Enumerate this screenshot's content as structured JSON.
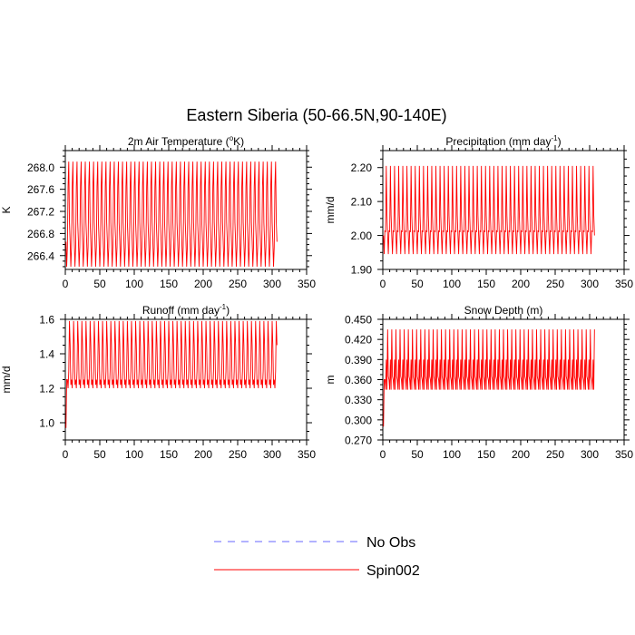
{
  "figure": {
    "title": "Eastern Siberia (50-66.5N,90-140E)"
  },
  "legend": {
    "entries": [
      {
        "label": "No Obs",
        "color": "#6666ff",
        "style": "dashed"
      },
      {
        "label": "Spin002",
        "color": "#ff0000",
        "style": "solid"
      }
    ]
  },
  "chart_data": [
    {
      "type": "line",
      "title": "2m Air Temperature (°K)",
      "title_main": "2m Air Temperature (",
      "title_sup": "o",
      "title_end": "K)",
      "ylabel": "K",
      "xlim": [
        0,
        350
      ],
      "ylim": [
        266.15,
        268.3
      ],
      "xticks": [
        0,
        50,
        100,
        150,
        200,
        250,
        300,
        350
      ],
      "yticks": [
        266.4,
        266.8,
        267.2,
        267.6,
        268.0
      ],
      "ytick_labels": [
        "266.4",
        "266.8",
        "267.2",
        "267.6",
        "268.0"
      ],
      "series": [
        {
          "name": "Spin002",
          "color": "#ff0000",
          "x_start": 1,
          "x_end": 307,
          "period": 6,
          "cycle": [
            266.65,
            266.2,
            266.55,
            267.65,
            268.1,
            267.0
          ]
        }
      ]
    },
    {
      "type": "line",
      "title": "Precipitation (mm day-1)",
      "title_main": "Precipitation (mm day",
      "title_sup": "-1",
      "title_end": ")",
      "ylabel": "mm/d",
      "xlim": [
        0,
        350
      ],
      "ylim": [
        1.9,
        2.25
      ],
      "xticks": [
        0,
        50,
        100,
        150,
        200,
        250,
        300,
        350
      ],
      "yticks": [
        1.9,
        2.0,
        2.1,
        2.2
      ],
      "ytick_labels": [
        "1.90",
        "2.00",
        "2.10",
        "2.20"
      ],
      "series": [
        {
          "name": "Spin002",
          "color": "#ff0000",
          "x_start": 1,
          "x_end": 307,
          "period": 6,
          "cycle": [
            2.0,
            1.945,
            2.015,
            2.01,
            2.205,
            2.06
          ]
        }
      ]
    },
    {
      "type": "line",
      "title": "Runoff (mm day-1)",
      "title_main": "Runoff (mm day",
      "title_sup": "-1",
      "title_end": ")",
      "ylabel": "mm/d",
      "xlim": [
        0,
        350
      ],
      "ylim": [
        0.9,
        1.6
      ],
      "xticks": [
        0,
        50,
        100,
        150,
        200,
        250,
        300,
        350
      ],
      "yticks": [
        1.0,
        1.2,
        1.4,
        1.6
      ],
      "ytick_labels": [
        "1.0",
        "1.2",
        "1.4",
        "1.6"
      ],
      "series": [
        {
          "name": "Spin002",
          "color": "#ff0000",
          "x_start": 1,
          "x_end": 307,
          "period": 6,
          "initial": [
            0.97,
            1.25
          ],
          "cycle": [
            1.25,
            1.2,
            1.3,
            1.59,
            1.45,
            1.22
          ]
        }
      ]
    },
    {
      "type": "line",
      "title": "Snow Depth (m)",
      "title_main": "Snow Depth (m)",
      "title_sup": "",
      "title_end": "",
      "ylabel": "m",
      "xlim": [
        0,
        350
      ],
      "ylim": [
        0.27,
        0.45
      ],
      "xticks": [
        0,
        50,
        100,
        150,
        200,
        250,
        300,
        350
      ],
      "yticks": [
        0.27,
        0.3,
        0.33,
        0.36,
        0.39,
        0.42,
        0.45
      ],
      "ytick_labels": [
        "0.270",
        "0.300",
        "0.330",
        "0.360",
        "0.390",
        "0.420",
        "0.450"
      ],
      "series": [
        {
          "name": "Spin002",
          "color": "#ff0000",
          "x_start": 1,
          "x_end": 307,
          "period": 6,
          "initial": [
            0.29,
            0.36
          ],
          "cycle": [
            0.36,
            0.345,
            0.39,
            0.345,
            0.435,
            0.365
          ]
        }
      ]
    }
  ]
}
